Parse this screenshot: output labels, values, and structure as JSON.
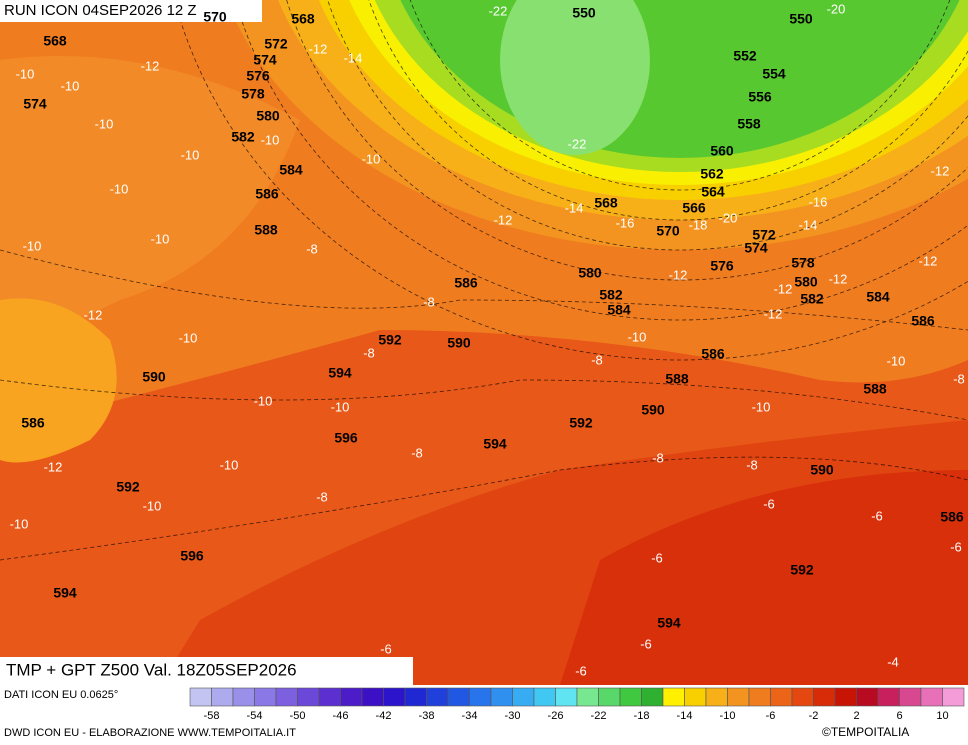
{
  "header": {
    "run": "RUN ICON 04SEP2026 12 Z"
  },
  "map": {
    "title": "TMP + GPT Z500 Val. 18Z05SEP2026",
    "geopotential_labels": [
      "570",
      "568",
      "568",
      "572",
      "574",
      "576",
      "578",
      "574",
      "580",
      "582",
      "584",
      "586",
      "588",
      "586",
      "592",
      "590",
      "594",
      "590",
      "586",
      "596",
      "594",
      "592",
      "592",
      "596",
      "594",
      "550",
      "550",
      "552",
      "554",
      "556",
      "558",
      "560",
      "562",
      "564",
      "566",
      "568",
      "570",
      "572",
      "574",
      "576",
      "578",
      "580",
      "582",
      "580",
      "582",
      "584",
      "584",
      "586",
      "586",
      "588",
      "590",
      "588",
      "590",
      "586",
      "592",
      "594"
    ],
    "temperature_labels": [
      "-22",
      "-20",
      "-12",
      "-14",
      "-12",
      "-10",
      "-10",
      "-10",
      "-10",
      "-10",
      "-10",
      "-10",
      "-22",
      "-14",
      "-16",
      "-18",
      "-20",
      "-16",
      "-14",
      "-12",
      "-12",
      "-12",
      "-12",
      "-12",
      "-12",
      "-12",
      "-10",
      "-10",
      "-8",
      "-8",
      "-12",
      "-10",
      "-8",
      "-8",
      "-10",
      "-10",
      "-8",
      "-10",
      "-10",
      "-10",
      "-8",
      "-8",
      "-8",
      "-10",
      "-12",
      "-10",
      "-8",
      "-10",
      "-6",
      "-6",
      "-6",
      "-6",
      "-6",
      "-6",
      "-6",
      "-4"
    ]
  },
  "legend": {
    "source": "DATI ICON EU 0.0625°",
    "scale_colors": [
      "#c4c4f2",
      "#aeaaee",
      "#9a90ea",
      "#8a78e6",
      "#7c60e0",
      "#6c48d8",
      "#5c30d0",
      "#4c1cc8",
      "#3c10c4",
      "#2c14cc",
      "#2028d4",
      "#2040dc",
      "#2058e4",
      "#2874ec",
      "#3090f0",
      "#38acf2",
      "#40c8f2",
      "#60e4f2",
      "#78e890",
      "#58d868",
      "#40c840",
      "#30b030",
      "#fff000",
      "#f8d000",
      "#f8b018",
      "#f49420",
      "#f07c20",
      "#ec6418",
      "#e44810",
      "#d82c08",
      "#c81404",
      "#b80a20",
      "#c8205c",
      "#d84890",
      "#e870b8",
      "#f49cd8"
    ],
    "scale_labels": [
      -58,
      -54,
      -50,
      -46,
      -42,
      -38,
      -34,
      -30,
      -26,
      -22,
      -18,
      -14,
      -10,
      -6,
      -2,
      2,
      6,
      10
    ]
  },
  "footer": {
    "credit": "DWD ICON EU - ELABORAZIONE WWW.TEMPOITALIA.IT",
    "copyright": "©TEMPOITALIA"
  }
}
